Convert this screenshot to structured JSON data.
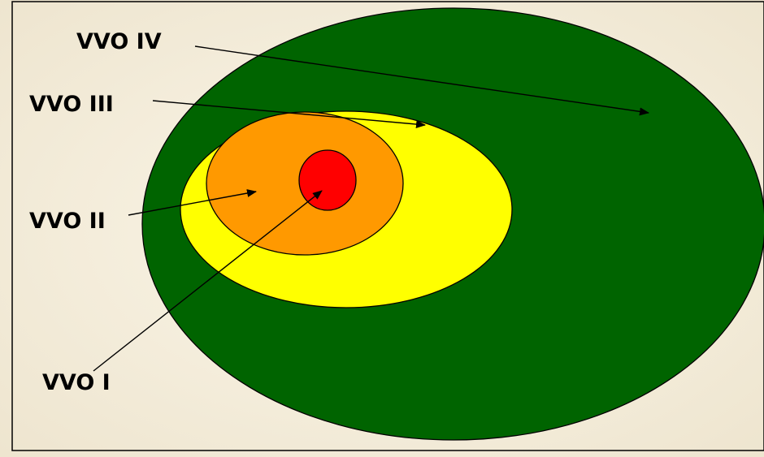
{
  "zones": [
    {
      "id": "vvo-iv",
      "label": "VVO IV",
      "color": "#006400"
    },
    {
      "id": "vvo-iii",
      "label": "VVO III",
      "color": "#ffff00"
    },
    {
      "id": "vvo-ii",
      "label": "VVO II",
      "color": "#ff9900"
    },
    {
      "id": "vvo-i",
      "label": "VVO I",
      "color": "#ff0000"
    }
  ],
  "frame_color": "#000000",
  "background_color": "#f6f0e2"
}
